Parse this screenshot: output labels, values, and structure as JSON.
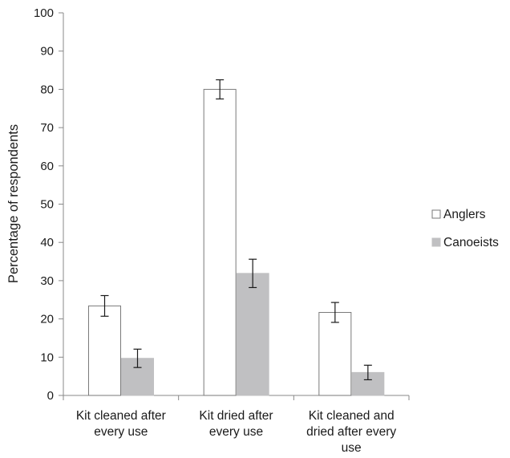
{
  "chart_data": {
    "type": "bar",
    "categories": [
      [
        "Kit cleaned after",
        "every use"
      ],
      [
        "Kit dried after",
        "every use"
      ],
      [
        "Kit cleaned and",
        "dried after every",
        "use"
      ]
    ],
    "series": [
      {
        "name": "Anglers",
        "values": [
          23.4,
          80.0,
          21.7
        ],
        "error": [
          2.7,
          2.5,
          2.6
        ],
        "fill": "#ffffff",
        "stroke": "#7a7a7a"
      },
      {
        "name": "Canoeists",
        "values": [
          9.7,
          31.9,
          6.0
        ],
        "error": [
          2.4,
          3.7,
          1.9
        ],
        "fill": "#c0c0c2",
        "stroke": "#c0c0c2"
      }
    ],
    "title": "",
    "xlabel": "",
    "ylabel": "Percentage of respondents",
    "ylim": [
      0,
      100
    ],
    "yticks": [
      0,
      10,
      20,
      30,
      40,
      50,
      60,
      70,
      80,
      90,
      100
    ],
    "grid": false,
    "legend_position": "right",
    "colors": {
      "axis": "#888888",
      "error_bar": "#1a1a1a"
    }
  }
}
